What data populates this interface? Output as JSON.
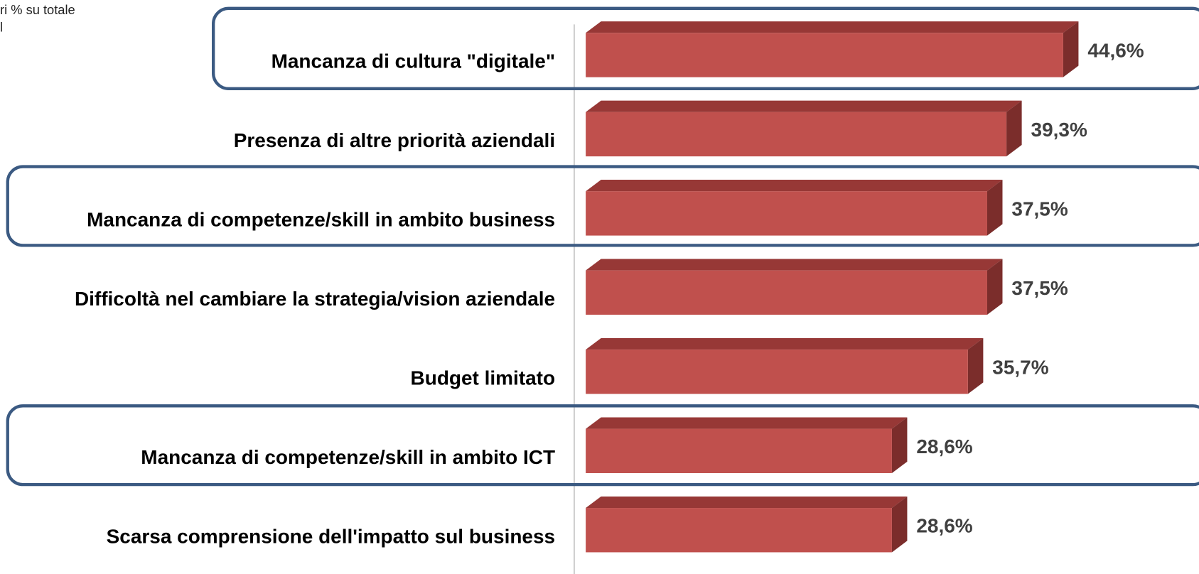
{
  "chart_data": {
    "type": "bar",
    "orientation": "horizontal",
    "subtitle": [
      "ri % su totale",
      "l"
    ],
    "categories": [
      "Mancanza di cultura \"digitale\"",
      "Presenza di altre priorità aziendali",
      "Mancanza di competenze/skill in ambito business",
      "Difficoltà nel cambiare la strategia/vision aziendale",
      "Budget limitato",
      "Mancanza di competenze/skill in ambito ICT",
      "Scarsa comprensione dell'impatto sul business"
    ],
    "values": [
      44.6,
      39.3,
      37.5,
      37.5,
      35.7,
      28.6,
      28.6
    ],
    "value_labels": [
      "44,6%",
      "39,3%",
      "37,5%",
      "37,5%",
      "35,7%",
      "28,6%",
      "28,6%"
    ],
    "color": "#c0504d"
  }
}
